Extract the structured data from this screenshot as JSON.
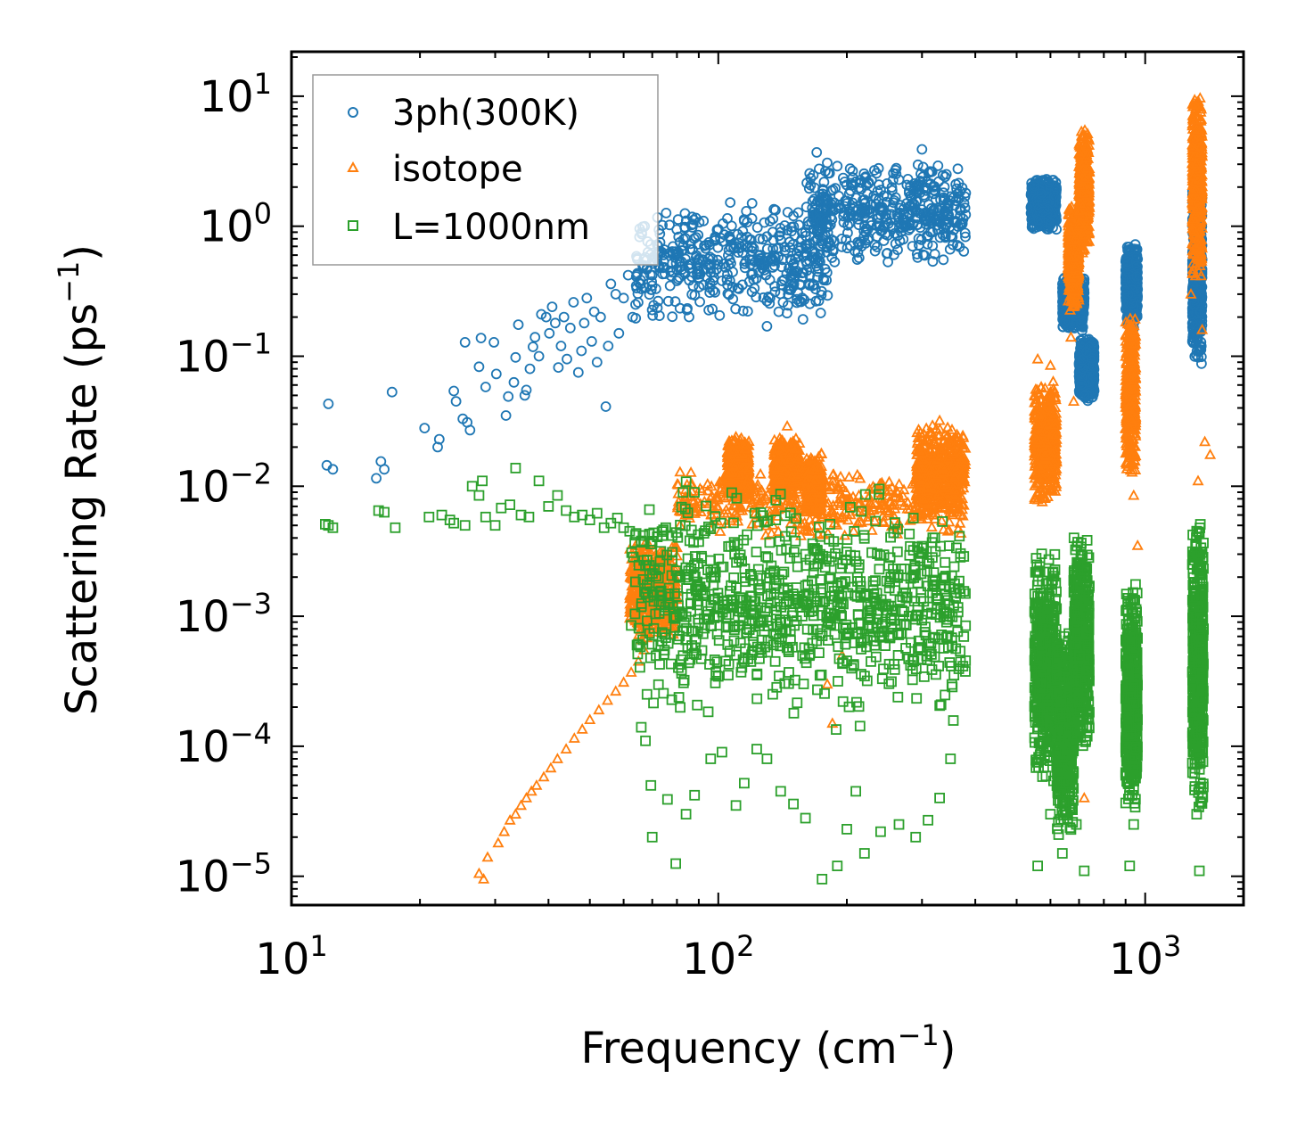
{
  "chart_data": {
    "type": "scatter",
    "title": "",
    "xlabel": "Frequency (cm",
    "xlabel_sup": "−1",
    "xlabel_end": ")",
    "ylabel": "Scattering Rate (ps",
    "ylabel_sup": "−1",
    "ylabel_end": ")",
    "xscale": "log",
    "yscale": "log",
    "xlim": [
      10,
      1700
    ],
    "ylim": [
      6e-06,
      22
    ],
    "legend_position": "top-left",
    "x_ticks": [
      {
        "base": "10",
        "exp": "1",
        "value": 10
      },
      {
        "base": "10",
        "exp": "2",
        "value": 100
      },
      {
        "base": "10",
        "exp": "3",
        "value": 1000
      }
    ],
    "y_ticks": [
      {
        "base": "10",
        "exp": "1",
        "value": 10
      },
      {
        "base": "10",
        "exp": "0",
        "value": 1
      },
      {
        "base": "10",
        "exp": "−1",
        "value": 0.1
      },
      {
        "base": "10",
        "exp": "−2",
        "value": 0.01
      },
      {
        "base": "10",
        "exp": "−3",
        "value": 0.001
      },
      {
        "base": "10",
        "exp": "−4",
        "value": 0.0001
      },
      {
        "base": "10",
        "exp": "−5",
        "value": 1e-05
      }
    ],
    "series": [
      {
        "name": "3ph(300K)",
        "marker": "circle",
        "color": "#1f77b4",
        "points": [
          [
            12.2,
            0.043
          ],
          [
            12.1,
            0.0145
          ],
          [
            12.5,
            0.0135
          ],
          [
            15.8,
            0.0115
          ],
          [
            16.2,
            0.0155
          ],
          [
            16.5,
            0.0135
          ],
          [
            17.2,
            0.053
          ],
          [
            20.5,
            0.028
          ],
          [
            22.2,
            0.023
          ],
          [
            22.0,
            0.02
          ],
          [
            24,
            0.054
          ],
          [
            24.3,
            0.045
          ],
          [
            25.2,
            0.033
          ],
          [
            25.8,
            0.031
          ],
          [
            26.2,
            0.027
          ],
          [
            25.5,
            0.128
          ],
          [
            27.5,
            0.083
          ],
          [
            27.8,
            0.138
          ],
          [
            28.5,
            0.058
          ],
          [
            29.8,
            0.128
          ],
          [
            30.2,
            0.073
          ],
          [
            31.8,
            0.035
          ],
          [
            32.2,
            0.049
          ],
          [
            33.2,
            0.063
          ],
          [
            33.5,
            0.098
          ],
          [
            34.0,
            0.175
          ],
          [
            35.2,
            0.05
          ],
          [
            35.5,
            0.055
          ],
          [
            36.2,
            0.08
          ],
          [
            36.8,
            0.118
          ],
          [
            37.2,
            0.14
          ],
          [
            38,
            0.1
          ],
          [
            38.5,
            0.21
          ],
          [
            39.5,
            0.2
          ],
          [
            40.2,
            0.15
          ],
          [
            40.8,
            0.24
          ],
          [
            41.5,
            0.18
          ],
          [
            42.2,
            0.082
          ],
          [
            42.8,
            0.12
          ],
          [
            43.5,
            0.2
          ],
          [
            44.2,
            0.095
          ],
          [
            45.0,
            0.165
          ],
          [
            45.8,
            0.26
          ],
          [
            47.0,
            0.075
          ],
          [
            47.8,
            0.11
          ],
          [
            48.5,
            0.18
          ],
          [
            49.2,
            0.28
          ],
          [
            50.5,
            0.13
          ],
          [
            51.2,
            0.22
          ],
          [
            52.0,
            0.09
          ],
          [
            53.0,
            0.2
          ],
          [
            54.5,
            0.041
          ],
          [
            55.2,
            0.12
          ],
          [
            56.0,
            0.36
          ],
          [
            57.5,
            0.3
          ],
          [
            58.5,
            0.15
          ],
          [
            60.0,
            0.28
          ],
          [
            61.5,
            0.42
          ],
          [
            63.0,
            0.2
          ],
          [
            64.0,
            0.25
          ],
          [
            66.0,
            0.33
          ],
          [
            68.0,
            0.55
          ],
          [
            70.0,
            0.42
          ],
          [
            72.0,
            0.6
          ],
          [
            75.0,
            0.43
          ],
          [
            78.0,
            0.64
          ],
          [
            80.0,
            0.38
          ],
          [
            82.0,
            0.65
          ],
          [
            85.0,
            0.5
          ],
          [
            90.0,
            0.55
          ],
          [
            95.0,
            0.75
          ],
          [
            98.0,
            0.8
          ],
          [
            100.0,
            0.95
          ],
          [
            105.0,
            1.15
          ],
          [
            110.0,
            0.7
          ],
          [
            115.0,
            1.1
          ],
          [
            120.0,
            1.5
          ],
          [
            125.0,
            0.8
          ],
          [
            130.0,
            0.17
          ],
          [
            135.0,
            1.35
          ],
          [
            140.0,
            0.9
          ],
          [
            150.0,
            1.2
          ],
          [
            160.0,
            0.9
          ],
          [
            170.0,
            3.7
          ],
          [
            180.0,
            0.7
          ],
          [
            190.0,
            2.9
          ],
          [
            200.0,
            1.5
          ],
          [
            210.0,
            2.2
          ],
          [
            220.0,
            1.6
          ],
          [
            240.0,
            1.9
          ],
          [
            260.0,
            2.7
          ],
          [
            280.0,
            1.8
          ],
          [
            300.0,
            3.9
          ],
          [
            320.0,
            2.0
          ],
          [
            340.0,
            2.4
          ],
          [
            360.0,
            2.1
          ],
          [
            380.0,
            1.8
          ]
        ],
        "clusters": [
          {
            "x": [
              64,
              185
            ],
            "y": [
              0.18,
              1.6
            ]
          },
          {
            "x": [
              160,
              380
            ],
            "y": [
              0.5,
              3.2
            ]
          },
          {
            "x": [
              540,
              620
            ],
            "y": [
              0.9,
              2.4
            ]
          },
          {
            "x": [
              640,
              720
            ],
            "y": [
              0.15,
              0.45
            ]
          },
          {
            "x": [
              700,
              760
            ],
            "y": [
              0.045,
              0.14
            ]
          },
          {
            "x": [
              900,
              960
            ],
            "y": [
              0.16,
              0.75
            ]
          },
          {
            "x": [
              1290,
              1360
            ],
            "y": [
              0.08,
              2.5
            ]
          }
        ]
      },
      {
        "name": "isotope",
        "marker": "triangle",
        "color": "#ff7f0e",
        "points": [
          [
            27.5,
            1.05e-05
          ],
          [
            28.2,
            9.5e-06
          ],
          [
            28.8,
            1.4e-05
          ],
          [
            30.5,
            1.8e-05
          ],
          [
            31.5,
            2.2e-05
          ],
          [
            32.5,
            2.7e-05
          ],
          [
            33.5,
            3e-05
          ],
          [
            34.5,
            3.5e-05
          ],
          [
            35.5,
            4e-05
          ],
          [
            36.5,
            4.5e-05
          ],
          [
            37.5,
            5e-05
          ],
          [
            39.0,
            5.8e-05
          ],
          [
            40.5,
            6.8e-05
          ],
          [
            42.0,
            8e-05
          ],
          [
            44.0,
            9.5e-05
          ],
          [
            46.0,
            0.000115
          ],
          [
            48.0,
            0.000135
          ],
          [
            50.0,
            0.00016
          ],
          [
            52.5,
            0.00019
          ],
          [
            55.0,
            0.000225
          ],
          [
            57.5,
            0.000265
          ],
          [
            60.0,
            0.00031
          ],
          [
            62.5,
            0.00037
          ],
          [
            65.0,
            0.00045
          ],
          [
            67.0,
            0.00055
          ],
          [
            145.0,
            0.029
          ],
          [
            110.0,
            0.024
          ],
          [
            180.0,
            0.0003
          ],
          [
            185.0,
            0.00015
          ],
          [
            195.0,
            0.0005
          ],
          [
            330.0,
            0.032
          ],
          [
            560.0,
            0.095
          ],
          [
            600.0,
            0.085
          ],
          [
            670.0,
            0.14
          ],
          [
            680.0,
            0.045
          ],
          [
            720.0,
            4e-05
          ],
          [
            900.0,
            0.028
          ],
          [
            940.0,
            0.0085
          ],
          [
            960.0,
            0.0035
          ],
          [
            1330.0,
            0.011
          ],
          [
            1380.0,
            0.022
          ],
          [
            1420.0,
            0.0175
          ],
          [
            1280.0,
            0.3
          ],
          [
            1360.0,
            0.16
          ]
        ],
        "clusters": [
          {
            "x": [
              62,
              80
            ],
            "y": [
              0.0006,
              0.004
            ]
          },
          {
            "x": [
              80,
              380
            ],
            "y": [
              0.004,
              0.014
            ]
          },
          {
            "x": [
              105,
              118
            ],
            "y": [
              0.008,
              0.024
            ]
          },
          {
            "x": [
              135,
              155
            ],
            "y": [
              0.008,
              0.024
            ]
          },
          {
            "x": [
              160,
              175
            ],
            "y": [
              0.006,
              0.018
            ]
          },
          {
            "x": [
              290,
              380
            ],
            "y": [
              0.006,
              0.03
            ]
          },
          {
            "x": [
              550,
              620
            ],
            "y": [
              0.007,
              0.065
            ]
          },
          {
            "x": [
              660,
              700
            ],
            "y": [
              0.22,
              1.5
            ]
          },
          {
            "x": [
              700,
              740
            ],
            "y": [
              0.6,
              6.0
            ]
          },
          {
            "x": [
              900,
              950
            ],
            "y": [
              0.012,
              0.24
            ]
          },
          {
            "x": [
              1290,
              1360
            ],
            "y": [
              0.4,
              10.5
            ]
          }
        ]
      },
      {
        "name": "L=1000nm",
        "marker": "square",
        "color": "#2ca02c",
        "points": [
          [
            12.0,
            0.0051
          ],
          [
            12.2,
            0.005
          ],
          [
            12.5,
            0.0048
          ],
          [
            16.0,
            0.0065
          ],
          [
            16.5,
            0.0063
          ],
          [
            17.5,
            0.0048
          ],
          [
            21.0,
            0.0058
          ],
          [
            22.5,
            0.006
          ],
          [
            23.5,
            0.0055
          ],
          [
            24.0,
            0.0052
          ],
          [
            25.5,
            0.005
          ],
          [
            26.5,
            0.01
          ],
          [
            27.5,
            0.0085
          ],
          [
            28.0,
            0.011
          ],
          [
            28.5,
            0.0058
          ],
          [
            30.0,
            0.005
          ],
          [
            31.0,
            0.0068
          ],
          [
            32.5,
            0.0072
          ],
          [
            33.5,
            0.0138
          ],
          [
            34.5,
            0.006
          ],
          [
            36.0,
            0.0058
          ],
          [
            38.0,
            0.011
          ],
          [
            40.0,
            0.007
          ],
          [
            42.0,
            0.0085
          ],
          [
            44.0,
            0.0065
          ],
          [
            46.0,
            0.0058
          ],
          [
            48.0,
            0.006
          ],
          [
            50.0,
            0.0055
          ],
          [
            52.0,
            0.0062
          ],
          [
            54.0,
            0.0048
          ],
          [
            56.0,
            0.0052
          ],
          [
            58.0,
            0.0057
          ],
          [
            60.0,
            0.0048
          ],
          [
            62.0,
            0.0045
          ],
          [
            64.0,
            0.0042
          ],
          [
            66.0,
            0.0038
          ],
          [
            62.5,
            0.00085
          ],
          [
            64.5,
            0.0006
          ],
          [
            66.0,
            0.00014
          ],
          [
            67.5,
            0.00011
          ],
          [
            69.5,
            5e-05
          ],
          [
            70.0,
            2e-05
          ],
          [
            76.0,
            3.9e-05
          ],
          [
            79.5,
            1.25e-05
          ],
          [
            84.0,
            3e-05
          ],
          [
            88.0,
            4.2e-05
          ],
          [
            96.0,
            8e-05
          ],
          [
            102.0,
            9e-05
          ],
          [
            110.0,
            3.5e-05
          ],
          [
            115.0,
            5.2e-05
          ],
          [
            123.0,
            9.5e-05
          ],
          [
            130.0,
            8e-05
          ],
          [
            140.0,
            4.5e-05
          ],
          [
            150.0,
            3.6e-05
          ],
          [
            160.0,
            2.8e-05
          ],
          [
            175.0,
            9.5e-06
          ],
          [
            190.0,
            1.2e-05
          ],
          [
            200.0,
            2.3e-05
          ],
          [
            210.0,
            4.5e-05
          ],
          [
            220.0,
            1.5e-05
          ],
          [
            240.0,
            2.2e-05
          ],
          [
            265.0,
            2.5e-05
          ],
          [
            290.0,
            2e-05
          ],
          [
            310.0,
            2.7e-05
          ],
          [
            330.0,
            4e-05
          ],
          [
            350.0,
            8e-05
          ],
          [
            560.0,
            1.2e-05
          ],
          [
            600.0,
            3e-05
          ],
          [
            640.0,
            1.5e-05
          ],
          [
            690.0,
            2.5e-05
          ],
          [
            720.0,
            1.1e-05
          ],
          [
            920.0,
            1.2e-05
          ],
          [
            940.0,
            2.5e-05
          ],
          [
            1320.0,
            3e-05
          ],
          [
            1340.0,
            1.1e-05
          ],
          [
            1360.0,
            4e-05
          ]
        ],
        "clusters": [
          {
            "x": [
              62,
              380
            ],
            "y": [
              0.0003,
              0.006
            ]
          },
          {
            "x": [
              68,
              380
            ],
            "y": [
              0.00012,
              0.012
            ]
          },
          {
            "x": [
              550,
              620
            ],
            "y": [
              5e-05,
              0.0035
            ]
          },
          {
            "x": [
              620,
              680
            ],
            "y": [
              2e-05,
              0.0008
            ]
          },
          {
            "x": [
              680,
              740
            ],
            "y": [
              8e-05,
              0.005
            ]
          },
          {
            "x": [
              900,
              960
            ],
            "y": [
              3e-05,
              0.0018
            ]
          },
          {
            "x": [
              1290,
              1370
            ],
            "y": [
              3e-05,
              0.006
            ]
          }
        ]
      }
    ]
  }
}
